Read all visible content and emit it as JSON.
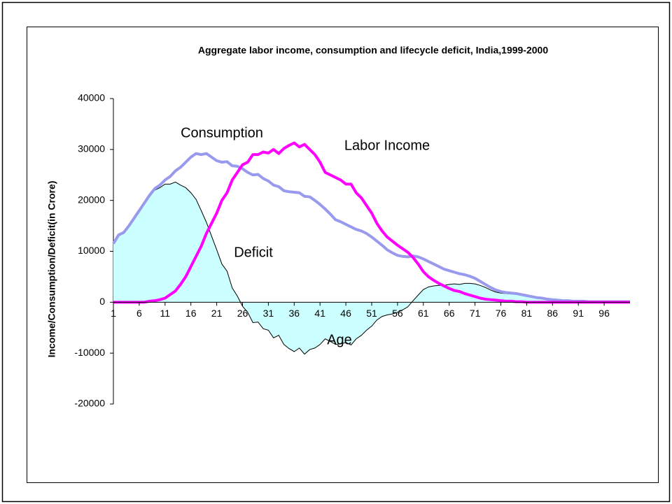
{
  "chart_data": {
    "type": "line",
    "title": "Aggregate labor income, consumption and lifecycle deficit, India,1999-2000",
    "y_label": "Income/Consumption/Deficit(in Crore)",
    "x_label": "Age",
    "annotations": [
      "Consumption",
      "Labor Income",
      "Deficit"
    ],
    "categories": [
      1,
      null,
      null,
      null,
      null,
      6,
      null,
      null,
      null,
      null,
      11,
      null,
      null,
      null,
      null,
      16,
      null,
      null,
      null,
      null,
      21,
      null,
      null,
      null,
      null,
      26,
      null,
      null,
      null,
      null,
      31,
      null,
      null,
      null,
      null,
      36,
      null,
      null,
      null,
      null,
      41,
      null,
      null,
      null,
      null,
      46,
      null,
      null,
      null,
      null,
      51,
      null,
      null,
      null,
      null,
      56,
      null,
      null,
      null,
      null,
      61,
      null,
      null,
      null,
      null,
      66,
      null,
      null,
      null,
      null,
      71,
      null,
      null,
      null,
      null,
      76,
      null,
      null,
      null,
      null,
      81,
      null,
      null,
      null,
      null,
      86,
      null,
      null,
      null,
      null,
      91,
      null,
      null,
      null,
      null,
      96,
      null,
      null,
      null,
      null,
      null
    ],
    "ylim": [
      -20000,
      40000
    ],
    "yticks": [
      -20000,
      -10000,
      0,
      10000,
      20000,
      30000,
      40000
    ],
    "series": [
      {
        "name": "Deficit",
        "color": "#000000",
        "fill": "#ccffff",
        "values": [
          11500,
          13200,
          13700,
          15000,
          16500,
          18000,
          19500,
          20800,
          22000,
          22500,
          23200,
          23200,
          23600,
          23000,
          22500,
          21500,
          20200,
          18000,
          15700,
          13000,
          10300,
          7500,
          6100,
          2800,
          1200,
          -800,
          -2000,
          -4000,
          -3900,
          -5200,
          -5500,
          -7000,
          -6500,
          -8300,
          -9100,
          -9700,
          -9000,
          -10200,
          -9300,
          -9000,
          -8300,
          -7200,
          -7700,
          -8300,
          -8200,
          -7900,
          -8400,
          -7200,
          -6500,
          -5500,
          -4700,
          -3500,
          -2800,
          -2500,
          -2300,
          -2000,
          -1500,
          -900,
          300,
          1400,
          2500,
          3000,
          3200,
          3300,
          3300,
          3500,
          3600,
          3500,
          3700,
          3700,
          3600,
          3300,
          2900,
          2400,
          2000,
          1800,
          1700,
          1600,
          1600,
          1400,
          1300,
          1100,
          900,
          800,
          600,
          500,
          400,
          300,
          300,
          200,
          200,
          200,
          100,
          100,
          100,
          100,
          100,
          100,
          100,
          100,
          100
        ]
      },
      {
        "name": "Consumption",
        "color": "#9999ee",
        "values": [
          11500,
          13200,
          13700,
          15000,
          16500,
          18000,
          19500,
          21000,
          22300,
          23000,
          24000,
          24700,
          25800,
          26500,
          27500,
          28500,
          29200,
          29000,
          29200,
          28500,
          27800,
          27500,
          27600,
          26800,
          26700,
          26200,
          25500,
          25000,
          25100,
          24300,
          23800,
          23000,
          22700,
          21900,
          21700,
          21600,
          21500,
          20800,
          20700,
          20000,
          19200,
          18300,
          17300,
          16200,
          15800,
          15300,
          14800,
          14300,
          14000,
          13500,
          12800,
          12000,
          11200,
          10300,
          9700,
          9200,
          9000,
          8900,
          9100,
          8900,
          8500,
          8000,
          7500,
          7000,
          6500,
          6200,
          5900,
          5600,
          5400,
          5100,
          4700,
          4100,
          3500,
          2900,
          2400,
          2100,
          1900,
          1800,
          1700,
          1500,
          1300,
          1100,
          900,
          800,
          600,
          500,
          400,
          300,
          300,
          200,
          200,
          200,
          100,
          100,
          100,
          100,
          100,
          100,
          100,
          100,
          100
        ]
      },
      {
        "name": "Labor Income",
        "color": "#ff00ff",
        "values": [
          0,
          0,
          0,
          0,
          0,
          0,
          0,
          200,
          300,
          500,
          800,
          1500,
          2200,
          3500,
          5000,
          7000,
          9000,
          11000,
          13500,
          15500,
          17500,
          20000,
          21500,
          24000,
          25500,
          27000,
          27500,
          29000,
          29000,
          29500,
          29300,
          30000,
          29200,
          30200,
          30800,
          31300,
          30500,
          31000,
          30000,
          29000,
          27500,
          25500,
          25000,
          24500,
          24000,
          23200,
          23200,
          21500,
          20500,
          19000,
          17500,
          15500,
          14000,
          12800,
          12000,
          11200,
          10500,
          9800,
          8800,
          7500,
          6000,
          5000,
          4300,
          3700,
          3200,
          2700,
          2300,
          2100,
          1700,
          1400,
          1100,
          800,
          600,
          500,
          400,
          300,
          200,
          200,
          100,
          100,
          0,
          0,
          0,
          0,
          0,
          0,
          0,
          0,
          0,
          0,
          0,
          0,
          0,
          0,
          0,
          0,
          0,
          0,
          0,
          0,
          0
        ]
      }
    ]
  }
}
